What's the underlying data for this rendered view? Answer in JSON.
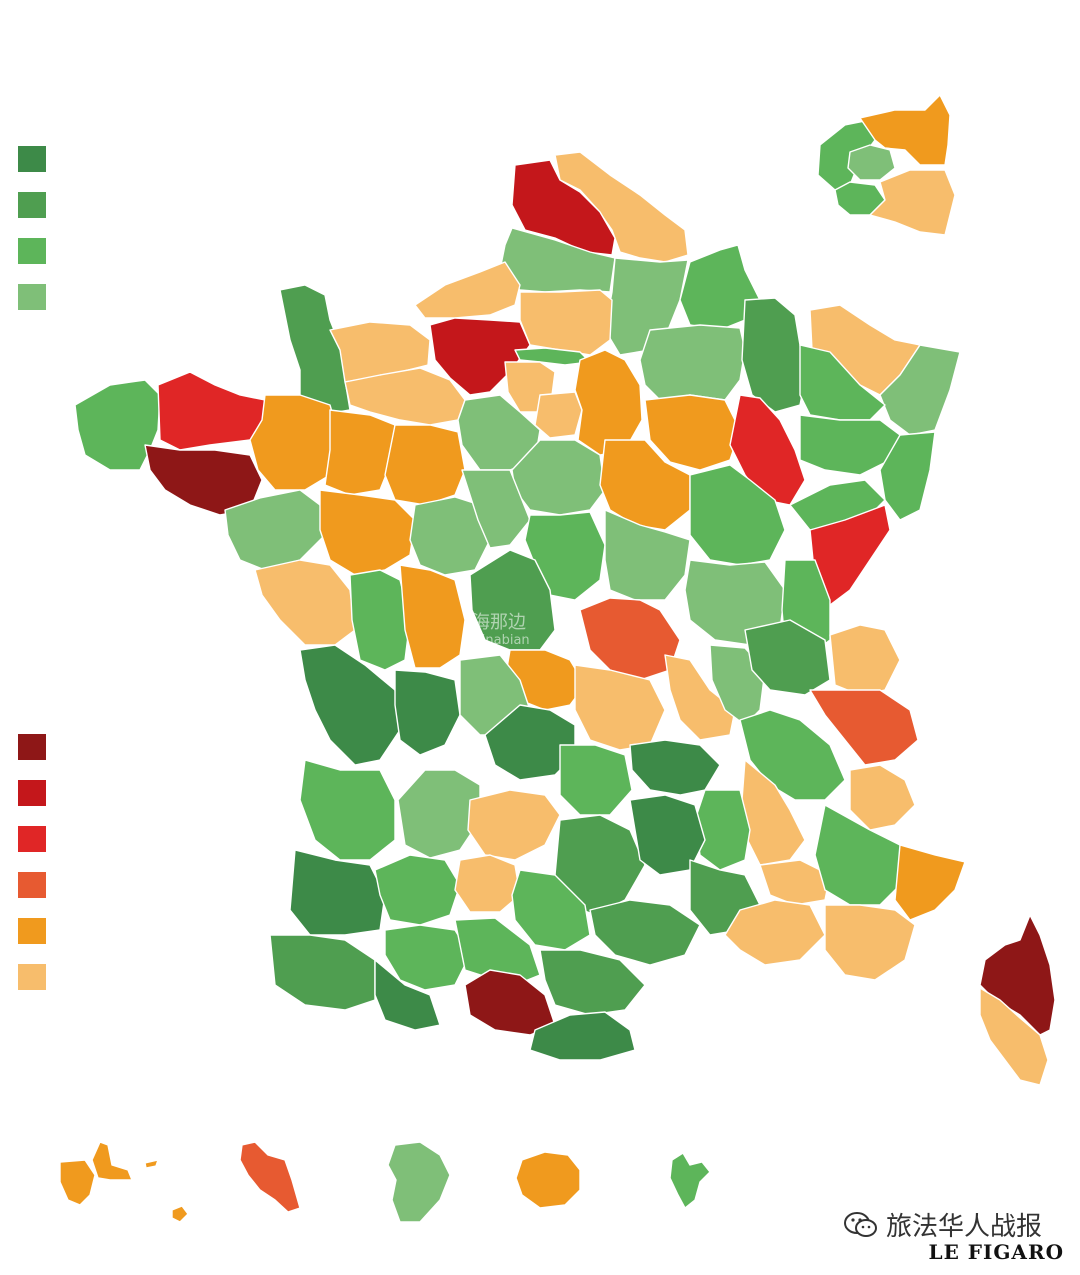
{
  "colors": {
    "green_1": "#3d8a48",
    "green_2": "#4f9e50",
    "green_3": "#5db55a",
    "green_4": "#7fbf78",
    "red_1": "#8e1717",
    "red_2": "#c4171b",
    "red_3": "#e02626",
    "red_4": "#e75a31",
    "orange_1": "#f09a1e",
    "orange_2": "#f7bd6c"
  },
  "legend": {
    "green": [
      "green_1",
      "green_2",
      "green_3",
      "green_4"
    ],
    "red": [
      "red_1",
      "red_2",
      "red_3",
      "red_4",
      "orange_1",
      "orange_2"
    ]
  },
  "watermark": {
    "line1": "海那边",
    "line2": "Hinabian"
  },
  "credit": {
    "text": "旅法华人战报",
    "icon": "wechat-icon"
  },
  "brand": {
    "name": "LE FIGARO"
  }
}
